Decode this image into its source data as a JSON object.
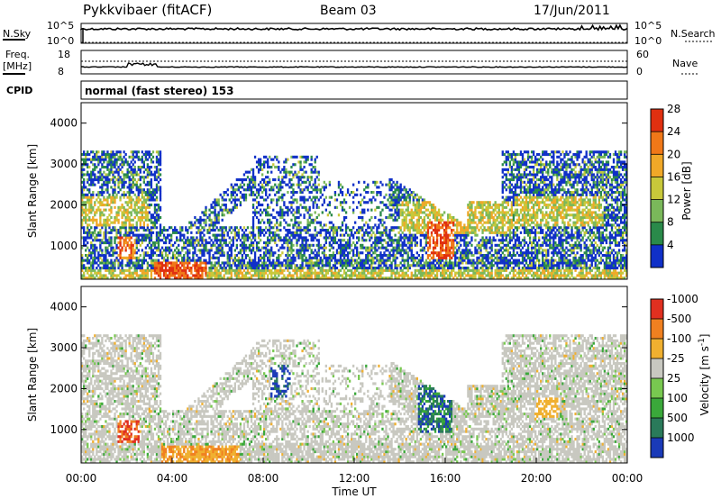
{
  "header": {
    "station": "Pykkvibaer (fitACF)",
    "beam": "Beam 03",
    "date": "17/Jun/2011"
  },
  "panels": {
    "nsky": {
      "label": "N.Sky",
      "ytick_top": "10^5",
      "ytick_bottom": "10^0",
      "right_label": "N.Search",
      "rtick_top": "10^5",
      "rtick_bottom": "10^0"
    },
    "freq": {
      "label_top": "Freq.",
      "label_unit": "[MHz]",
      "ytick_top": "18",
      "ytick_bottom": "8",
      "right_label": "Nave",
      "rtick_top": "60",
      "rtick_bottom": "0"
    },
    "cpid": {
      "label": "CPID",
      "text": "normal (fast stereo) 153"
    }
  },
  "chart_data": [
    {
      "type": "heatmap",
      "title": "",
      "xlabel": "",
      "ylabel": "Slant Range [km]",
      "ylim": [
        180,
        4500
      ],
      "xlim": [
        "00:00",
        "24:00"
      ],
      "y_ticks": [
        1000,
        2000,
        3000,
        4000
      ],
      "colorbar": {
        "label": "Power [dB]",
        "ticks": [
          "4",
          "8",
          "12",
          "16",
          "20",
          "24",
          "28"
        ],
        "colors": [
          "#1030c8",
          "#2a8a4a",
          "#7ab85a",
          "#c8c83a",
          "#f0a828",
          "#f07818",
          "#e03010"
        ]
      },
      "regions": [
        {
          "t_start": 0.0,
          "t_end": 24.0,
          "r_min": 180,
          "r_max": 3300,
          "description_level": "mixed"
        },
        {
          "t_start": 3.2,
          "t_end": 5.5,
          "r_min": 180,
          "r_max": 600,
          "level": 28
        },
        {
          "t_start": 15.3,
          "t_end": 16.3,
          "r_min": 700,
          "r_max": 1600,
          "level": 24
        }
      ]
    },
    {
      "type": "heatmap",
      "title": "",
      "xlabel": "Time UT",
      "ylabel": "Slant Range [km]",
      "ylim": [
        180,
        4500
      ],
      "xlim": [
        "00:00",
        "24:00"
      ],
      "x_ticks": [
        "00:00",
        "04:00",
        "08:00",
        "12:00",
        "16:00",
        "20:00",
        "00:00"
      ],
      "y_ticks": [
        1000,
        2000,
        3000,
        4000
      ],
      "colorbar": {
        "label": "Velocity [m s^-1]",
        "ticks": [
          "1000",
          "500",
          "100",
          "25",
          "-25",
          "-100",
          "-500",
          "-1000"
        ],
        "colors": [
          "#1a3ab8",
          "#2a7a5a",
          "#3aa83a",
          "#78c850",
          "#c8c8c0",
          "#f0b030",
          "#f08020",
          "#e03020"
        ]
      }
    }
  ]
}
